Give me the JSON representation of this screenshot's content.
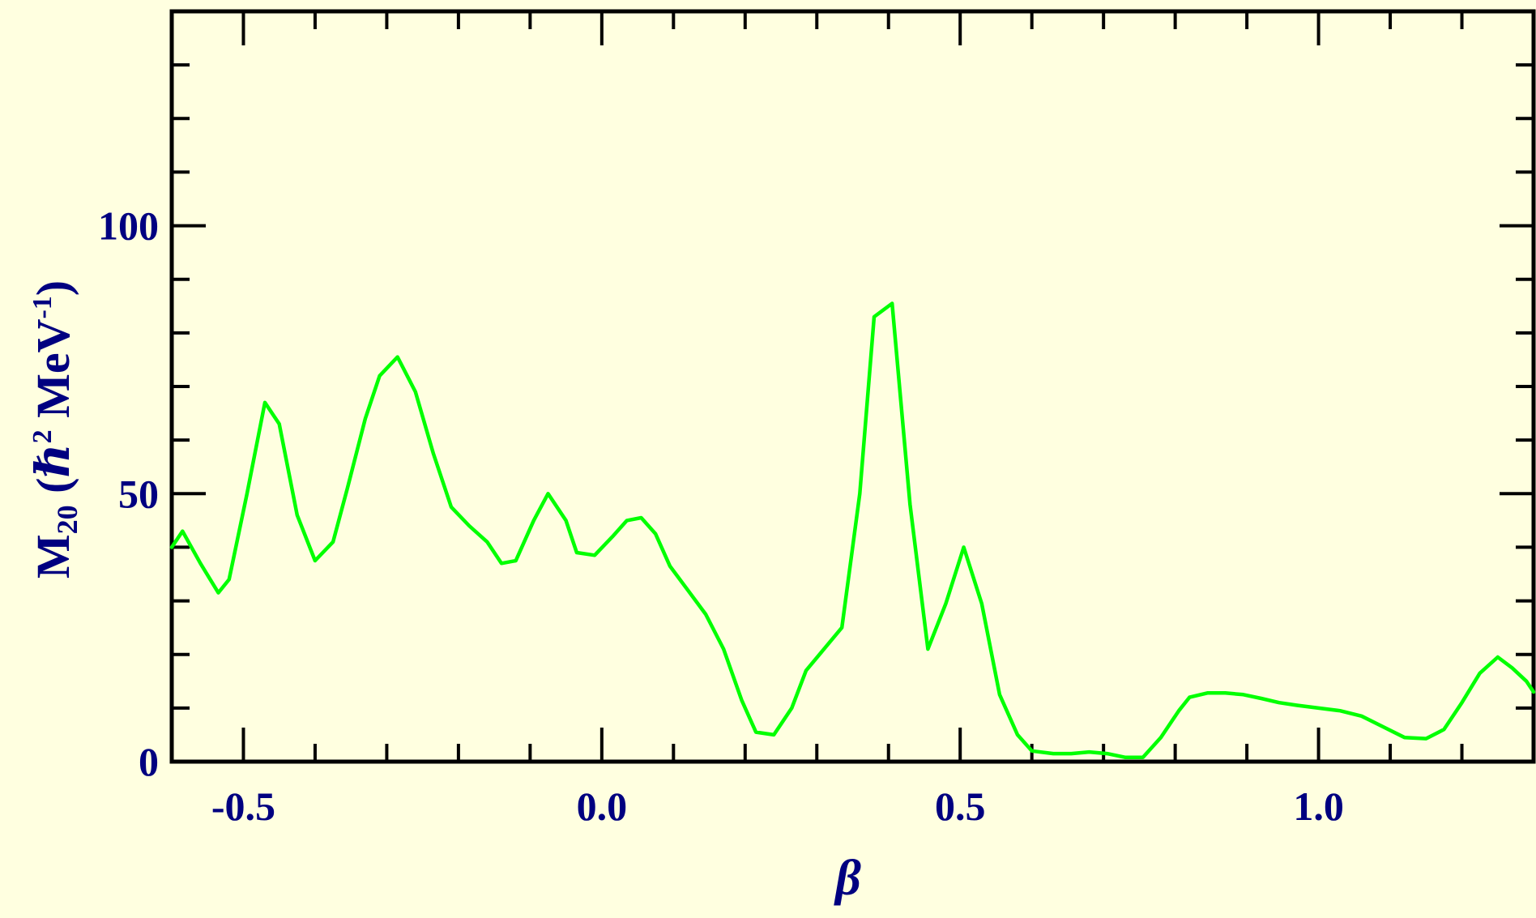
{
  "colors": {
    "background": "#ffffe0",
    "axis": "#000000",
    "label": "#000080",
    "series": "#00ff00"
  },
  "chart_data": {
    "type": "line",
    "xlabel": "β",
    "ylabel": {
      "main": "M",
      "subscript": "20",
      "open": " (",
      "hbar": "ℏ",
      "sup2": "2",
      "unit": " MeV",
      "sup_neg1": "-1",
      "close": ")"
    },
    "xlim": [
      -0.6,
      1.3
    ],
    "ylim": [
      0,
      140
    ],
    "x_ticks": [
      -0.5,
      0.0,
      0.5,
      1.0
    ],
    "x_tick_labels": [
      "-0.5",
      "0.0",
      "0.5",
      "1.0"
    ],
    "x_minor_step": 0.1,
    "y_ticks": [
      0,
      50,
      100
    ],
    "y_tick_labels": [
      "0",
      "50",
      "100"
    ],
    "y_minor_step": 10,
    "grid": false,
    "series": [
      {
        "color": "#00ff00",
        "x": [
          -0.6,
          -0.585,
          -0.56,
          -0.535,
          -0.52,
          -0.495,
          -0.47,
          -0.45,
          -0.425,
          -0.4,
          -0.375,
          -0.355,
          -0.33,
          -0.31,
          -0.285,
          -0.26,
          -0.235,
          -0.21,
          -0.185,
          -0.16,
          -0.14,
          -0.12,
          -0.095,
          -0.075,
          -0.05,
          -0.035,
          -0.01,
          0.015,
          0.035,
          0.055,
          0.075,
          0.095,
          0.12,
          0.145,
          0.17,
          0.195,
          0.215,
          0.24,
          0.265,
          0.285,
          0.31,
          0.335,
          0.36,
          0.38,
          0.405,
          0.43,
          0.455,
          0.48,
          0.505,
          0.53,
          0.555,
          0.58,
          0.6,
          0.63,
          0.655,
          0.68,
          0.705,
          0.73,
          0.755,
          0.78,
          0.805,
          0.82,
          0.845,
          0.87,
          0.895,
          0.92,
          0.945,
          0.97,
          1.0,
          1.03,
          1.06,
          1.09,
          1.12,
          1.15,
          1.175,
          1.2,
          1.225,
          1.25,
          1.27,
          1.29,
          1.3
        ],
        "y": [
          40,
          43,
          37,
          31.5,
          34,
          50,
          67,
          63,
          46,
          37.5,
          41,
          51,
          64,
          72,
          75.5,
          69,
          57.5,
          47.5,
          44,
          41,
          37,
          37.5,
          45,
          50,
          45,
          39,
          38.5,
          42,
          45,
          45.5,
          42.5,
          36.5,
          32,
          27.5,
          21,
          11.5,
          5.5,
          5,
          10,
          17,
          21,
          25,
          50,
          83,
          85.5,
          48,
          21,
          29.5,
          40,
          29.5,
          12.5,
          5,
          2,
          1.5,
          1.5,
          1.8,
          1.5,
          0.8,
          0.8,
          4.5,
          9.5,
          12,
          12.8,
          12.8,
          12.5,
          11.8,
          11,
          10.5,
          10,
          9.5,
          8.5,
          6.5,
          4.5,
          4.3,
          6,
          11,
          16.5,
          19.5,
          17.5,
          15,
          13
        ]
      }
    ]
  }
}
